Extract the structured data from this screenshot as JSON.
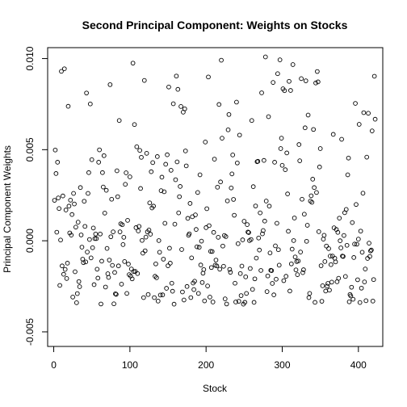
{
  "chart_data": {
    "type": "scatter",
    "title": "Second Principal Component: Weights on Stocks",
    "xlabel": "Stock",
    "ylabel": "Principal Component Weights",
    "xlim": [
      -8,
      432
    ],
    "ylim": [
      -0.0058,
      0.0106
    ],
    "x_ticks": [
      0,
      100,
      200,
      300,
      400
    ],
    "x_tick_labels": [
      "0",
      "100",
      "200",
      "300",
      "400"
    ],
    "y_ticks": [
      -0.005,
      0.0,
      0.005,
      0.01
    ],
    "y_tick_labels": [
      "-0.005",
      "0.000",
      "0.005",
      "0.010"
    ],
    "grid": false,
    "legend": "none",
    "marker": "open-circle",
    "color": "#000000",
    "points": []
  }
}
